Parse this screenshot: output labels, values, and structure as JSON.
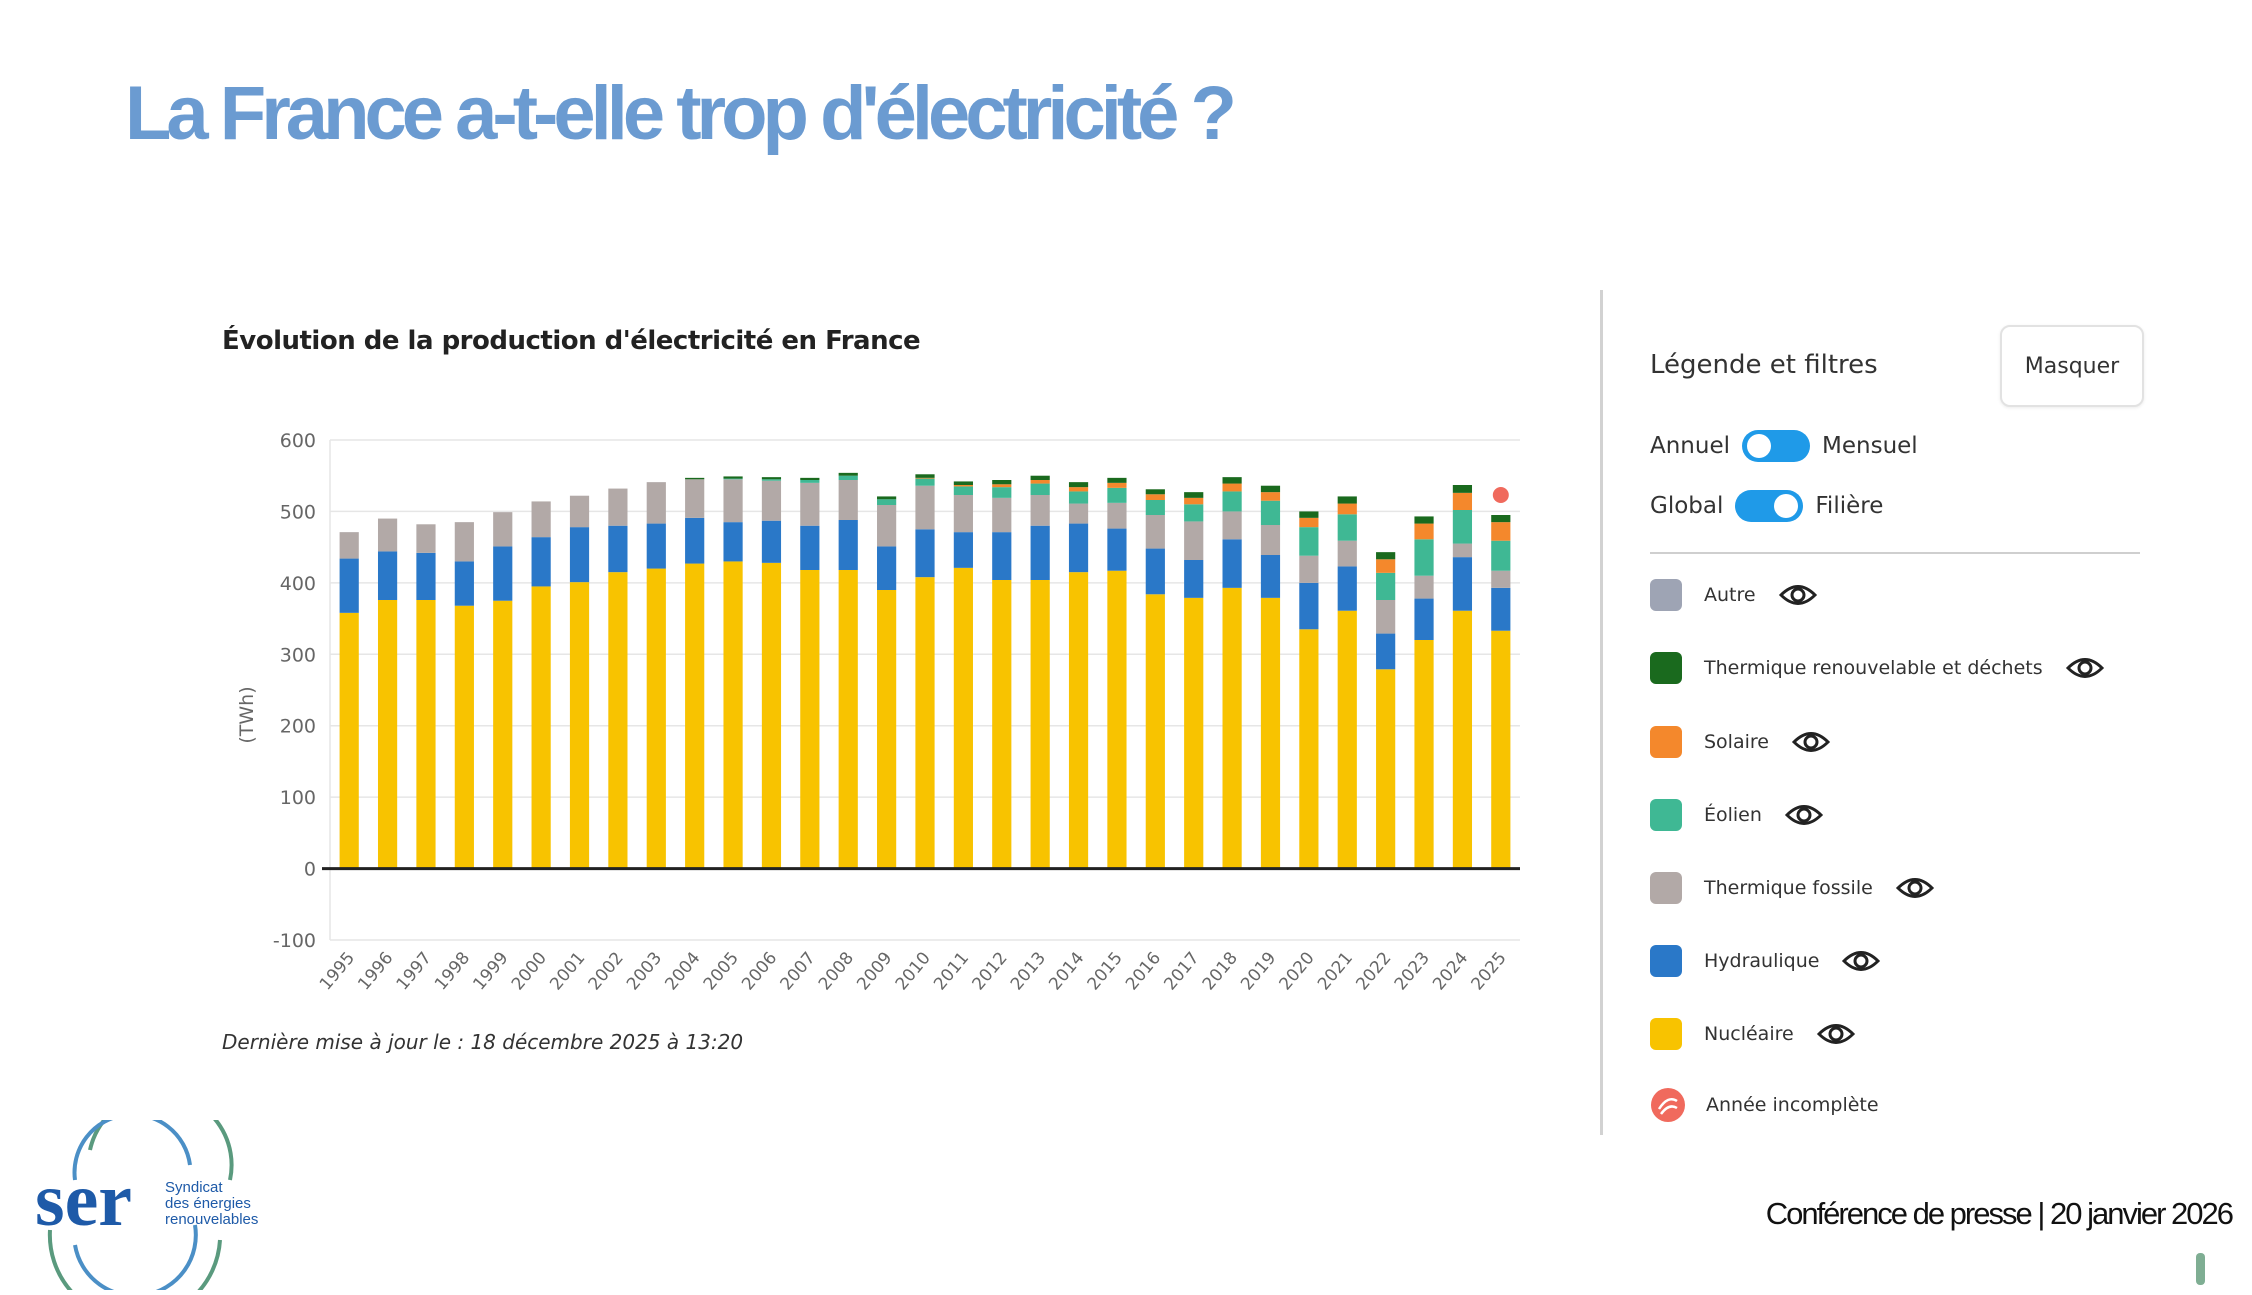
{
  "slide": {
    "title": "La France a-t-elle trop d'électricité ?",
    "footer": "Conférence de presse | 20 janvier 2026"
  },
  "logo": {
    "wordmark": "ser",
    "tagline_1": "Syndicat",
    "tagline_2": "des énergies",
    "tagline_3": "renouvelables"
  },
  "chart_data": {
    "type": "bar",
    "stacked": true,
    "title": "Évolution de la production d'électricité en France",
    "xlabel": "",
    "ylabel": "(TWh)",
    "ylim": [
      -100,
      600
    ],
    "yticks": [
      -100,
      0,
      100,
      200,
      300,
      400,
      500,
      600
    ],
    "grid": true,
    "categories": [
      "1995",
      "1996",
      "1997",
      "1998",
      "1999",
      "2000",
      "2001",
      "2002",
      "2003",
      "2004",
      "2005",
      "2006",
      "2007",
      "2008",
      "2009",
      "2010",
      "2011",
      "2012",
      "2013",
      "2014",
      "2015",
      "2016",
      "2017",
      "2018",
      "2019",
      "2020",
      "2021",
      "2022",
      "2023",
      "2024",
      "2025"
    ],
    "series": [
      {
        "name": "Nucléaire",
        "color": "#f8c300",
        "values": [
          358,
          376,
          376,
          368,
          375,
          395,
          401,
          415,
          420,
          427,
          430,
          428,
          418,
          418,
          390,
          408,
          421,
          404,
          404,
          415,
          417,
          384,
          379,
          393,
          379,
          335,
          361,
          279,
          320,
          361,
          333
        ]
      },
      {
        "name": "Hydraulique",
        "color": "#2a78c8",
        "values": [
          76,
          68,
          66,
          62,
          76,
          69,
          77,
          65,
          63,
          64,
          55,
          59,
          62,
          70,
          61,
          67,
          50,
          67,
          76,
          68,
          59,
          64,
          53,
          68,
          60,
          65,
          62,
          50,
          58,
          75,
          60
        ]
      },
      {
        "name": "Thermique fossile",
        "color": "#b2a9a7",
        "values": [
          37,
          46,
          40,
          55,
          48,
          50,
          44,
          52,
          58,
          54,
          60,
          56,
          60,
          56,
          58,
          61,
          52,
          48,
          43,
          28,
          36,
          47,
          54,
          39,
          42,
          38,
          36,
          47,
          32,
          19,
          24
        ]
      },
      {
        "name": "Éolien",
        "color": "#3fb894",
        "values": [
          0,
          0,
          0,
          0,
          0,
          0,
          0,
          0,
          0,
          0,
          1,
          2,
          4,
          6,
          8,
          10,
          12,
          15,
          16,
          17,
          21,
          21,
          24,
          28,
          34,
          40,
          37,
          38,
          51,
          47,
          42
        ]
      },
      {
        "name": "Solaire",
        "color": "#f4882c",
        "values": [
          0,
          0,
          0,
          0,
          0,
          0,
          0,
          0,
          0,
          0,
          0,
          0,
          0,
          0,
          0,
          1,
          2,
          4,
          5,
          6,
          7,
          8,
          9,
          11,
          12,
          13,
          15,
          19,
          22,
          24,
          26
        ]
      },
      {
        "name": "Thermique renouvelable et déchets",
        "color": "#1a6a1e",
        "values": [
          0,
          0,
          0,
          0,
          0,
          0,
          0,
          0,
          0,
          2,
          3,
          3,
          3,
          4,
          4,
          5,
          5,
          6,
          6,
          7,
          7,
          7,
          8,
          9,
          9,
          9,
          10,
          10,
          10,
          11,
          10
        ]
      },
      {
        "name": "Autre",
        "color": "#9ea4b4",
        "values": [
          0,
          0,
          0,
          0,
          0,
          0,
          0,
          0,
          0,
          0,
          0,
          0,
          0,
          0,
          0,
          0,
          0,
          0,
          0,
          0,
          0,
          0,
          0,
          0,
          0,
          0,
          0,
          0,
          0,
          0,
          0
        ]
      }
    ],
    "incomplete_year": "2025",
    "updated": "Dernière mise à jour le : 18 décembre 2025 à 13:20"
  },
  "legend": {
    "heading": "Légende et filtres",
    "mask_label": "Masquer",
    "toggle_period": {
      "left": "Annuel",
      "right": "Mensuel"
    },
    "toggle_view": {
      "left": "Global",
      "right": "Filière"
    },
    "items": [
      {
        "label": "Autre",
        "color": "#9ea4b4"
      },
      {
        "label": "Thermique renouvelable et déchets",
        "color": "#1a6a1e"
      },
      {
        "label": "Solaire",
        "color": "#f4882c"
      },
      {
        "label": "Éolien",
        "color": "#3fb894"
      },
      {
        "label": "Thermique fossile",
        "color": "#b2a9a7"
      },
      {
        "label": "Hydraulique",
        "color": "#2a78c8"
      },
      {
        "label": "Nucléaire",
        "color": "#f8c300"
      }
    ],
    "incomplete_label": "Année incomplète"
  }
}
